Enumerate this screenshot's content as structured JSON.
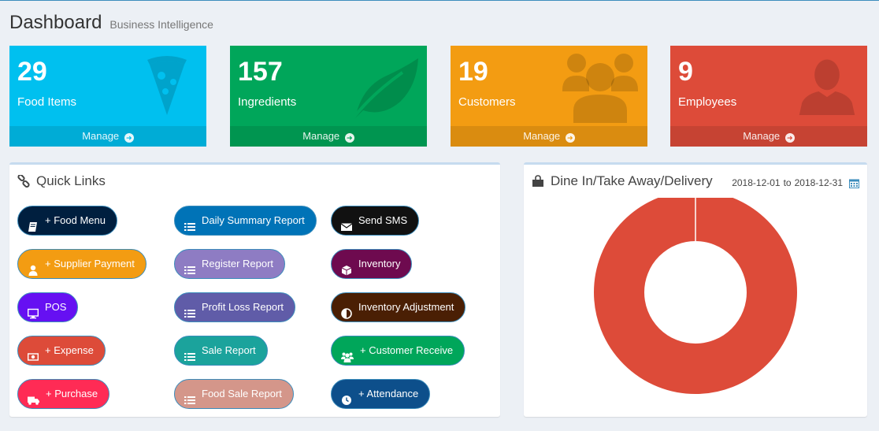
{
  "header": {
    "title": "Dashboard",
    "subtitle": "Business Intelligence"
  },
  "stats": [
    {
      "value": "29",
      "label": "Food Items",
      "link": "Manage",
      "color": "#00c0ef",
      "icon": "pizza-icon"
    },
    {
      "value": "157",
      "label": "Ingredients",
      "link": "Manage",
      "color": "#00a65a",
      "icon": "leaf-icon"
    },
    {
      "value": "19",
      "label": "Customers",
      "link": "Manage",
      "color": "#f39c12",
      "icon": "users-icon"
    },
    {
      "value": "9",
      "label": "Employees",
      "link": "Manage",
      "color": "#dd4b39",
      "icon": "user-icon"
    }
  ],
  "quick_links": {
    "title": "Quick Links",
    "buttons": [
      {
        "label": "+ Food Menu",
        "color": "#001f3f",
        "icon": "book-icon"
      },
      {
        "label": "Daily Summary Report",
        "color": "#0073b7",
        "icon": "list-icon"
      },
      {
        "label": "Send SMS",
        "color": "#111111",
        "icon": "envelope-icon"
      },
      {
        "label": "+ Supplier Payment",
        "color": "#f39c12",
        "icon": "user-icon"
      },
      {
        "label": "Register Report",
        "color": "#8e7cc3",
        "icon": "list-icon"
      },
      {
        "label": "Inventory",
        "color": "#6e0a4f",
        "icon": "cube-icon"
      },
      {
        "label": "POS",
        "color": "#6610f2",
        "icon": "desktop-icon"
      },
      {
        "label": "Profit Loss Report",
        "color": "#605ca8",
        "icon": "list-icon"
      },
      {
        "label": "Inventory Adjustment",
        "color": "#4a1f04",
        "icon": "adjust-icon"
      },
      {
        "label": "+ Expense",
        "color": "#dd4b39",
        "icon": "money-icon"
      },
      {
        "label": "Sale Report",
        "color": "#1ba39c",
        "icon": "list-icon"
      },
      {
        "label": "+ Customer Receive",
        "color": "#00a65a",
        "icon": "users-icon"
      },
      {
        "label": "+ Purchase",
        "color": "#ff2b55",
        "icon": "truck-icon"
      },
      {
        "label": "Food Sale Report",
        "color": "#d4968a",
        "icon": "list-icon"
      },
      {
        "label": "+ Attendance",
        "color": "#0d4f8b",
        "icon": "clock-icon"
      }
    ]
  },
  "dine_panel": {
    "title": "Dine In/Take Away/Delivery",
    "date_from": "2018-12-01",
    "date_sep": "to",
    "date_to": "2018-12-31"
  },
  "chart_data": {
    "type": "pie",
    "donut": true,
    "slices": [
      {
        "value": 100,
        "color": "#dd4b39"
      }
    ]
  }
}
